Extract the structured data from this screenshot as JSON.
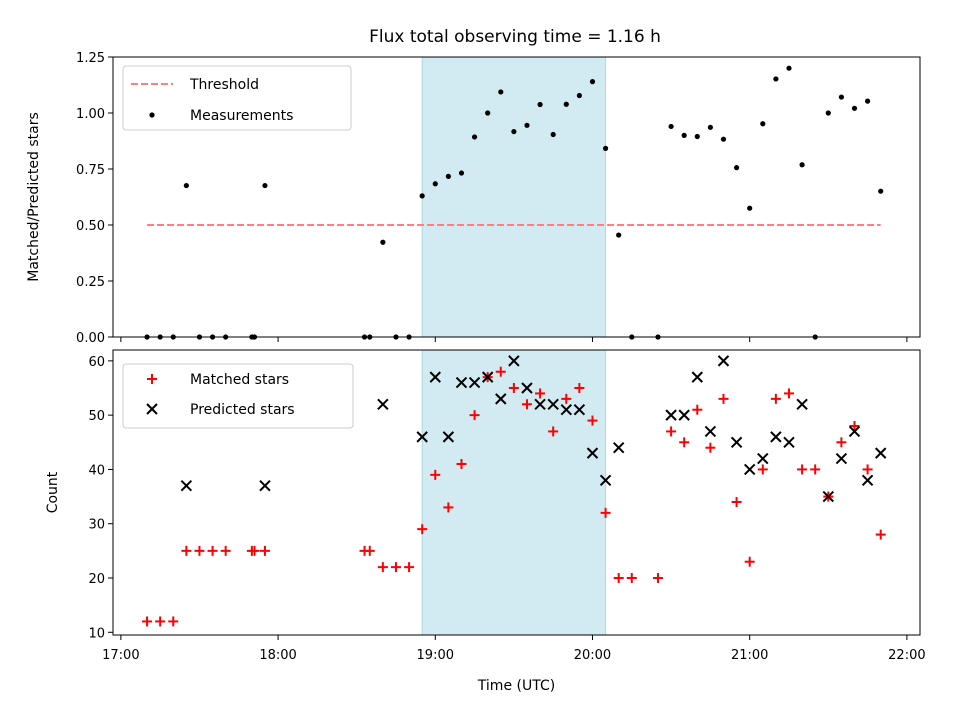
{
  "chart_data": [
    {
      "type": "scatter",
      "title": "Flux total observing time = 1.16 h",
      "xlabel": "",
      "ylabel": "Matched/Predicted stars",
      "xlim": [
        "16:57",
        "22:05"
      ],
      "ylim": [
        0,
        1.25
      ],
      "yticks": [
        0.0,
        0.25,
        0.5,
        0.75,
        1.0,
        1.25
      ],
      "ytick_labels": [
        "0.00",
        "0.25",
        "0.50",
        "0.75",
        "1.00",
        "1.25"
      ],
      "shaded_interval": {
        "x": [
          "18:55",
          "20:05"
        ],
        "color": "#add8e6"
      },
      "legend": {
        "position": "top-left",
        "entries": [
          "Threshold",
          "Measurements"
        ]
      },
      "threshold": {
        "name": "Threshold",
        "y": 0.5,
        "x": [
          "17:10",
          "21:50"
        ],
        "color": "#ff7f7f",
        "style": "dashed"
      },
      "series": [
        {
          "name": "Measurements",
          "color": "#000000",
          "marker": "dot",
          "points": [
            [
              "17:10",
              0.0
            ],
            [
              "17:15",
              0.0
            ],
            [
              "17:20",
              0.0
            ],
            [
              "17:25",
              0.676
            ],
            [
              "17:30",
              0.0
            ],
            [
              "17:35",
              0.0
            ],
            [
              "17:40",
              0.0
            ],
            [
              "17:50",
              0.0
            ],
            [
              "17:51",
              0.0
            ],
            [
              "17:55",
              0.676
            ],
            [
              "18:33",
              0.0
            ],
            [
              "18:35",
              0.0
            ],
            [
              "18:40",
              0.423
            ],
            [
              "18:45",
              0.0
            ],
            [
              "18:50",
              0.0
            ],
            [
              "18:55",
              0.63
            ],
            [
              "19:00",
              0.684
            ],
            [
              "19:05",
              0.717
            ],
            [
              "19:10",
              0.732
            ],
            [
              "19:15",
              0.893
            ],
            [
              "19:20",
              1.0
            ],
            [
              "19:25",
              1.094
            ],
            [
              "19:30",
              0.917
            ],
            [
              "19:35",
              0.945
            ],
            [
              "19:40",
              1.038
            ],
            [
              "19:45",
              0.904
            ],
            [
              "19:50",
              1.039
            ],
            [
              "19:55",
              1.078
            ],
            [
              "20:00",
              1.14
            ],
            [
              "20:05",
              0.842
            ],
            [
              "20:10",
              0.455
            ],
            [
              "20:15",
              0.0
            ],
            [
              "20:25",
              0.0
            ],
            [
              "20:30",
              0.94
            ],
            [
              "20:35",
              0.9
            ],
            [
              "20:40",
              0.895
            ],
            [
              "20:45",
              0.936
            ],
            [
              "20:50",
              0.883
            ],
            [
              "20:55",
              0.756
            ],
            [
              "21:00",
              0.575
            ],
            [
              "21:05",
              0.952
            ],
            [
              "21:10",
              1.152
            ],
            [
              "21:15",
              1.2
            ],
            [
              "21:20",
              0.769
            ],
            [
              "21:25",
              0.0
            ],
            [
              "21:30",
              1.0
            ],
            [
              "21:35",
              1.071
            ],
            [
              "21:40",
              1.021
            ],
            [
              "21:45",
              1.053
            ],
            [
              "21:50",
              0.651
            ]
          ]
        }
      ]
    },
    {
      "type": "scatter",
      "title": "",
      "xlabel": "Time (UTC)",
      "ylabel": "Count",
      "xlim": [
        "16:57",
        "22:05"
      ],
      "xticks": [
        "17:00",
        "18:00",
        "19:00",
        "20:00",
        "21:00",
        "22:00"
      ],
      "ylim": [
        9.5,
        62
      ],
      "yticks": [
        10,
        20,
        30,
        40,
        50,
        60
      ],
      "shaded_interval": {
        "x": [
          "18:55",
          "20:05"
        ],
        "color": "#add8e6"
      },
      "legend": {
        "position": "top-left",
        "entries": [
          "Matched stars",
          "Predicted stars"
        ]
      },
      "series": [
        {
          "name": "Matched stars",
          "color": "#ff0000",
          "marker": "plus",
          "points": [
            [
              "17:10",
              12
            ],
            [
              "17:15",
              12
            ],
            [
              "17:20",
              12
            ],
            [
              "17:25",
              25
            ],
            [
              "17:30",
              25
            ],
            [
              "17:35",
              25
            ],
            [
              "17:40",
              25
            ],
            [
              "17:50",
              25
            ],
            [
              "17:51",
              25
            ],
            [
              "17:55",
              25
            ],
            [
              "18:33",
              25
            ],
            [
              "18:35",
              25
            ],
            [
              "18:40",
              22
            ],
            [
              "18:45",
              22
            ],
            [
              "18:50",
              22
            ],
            [
              "18:55",
              29
            ],
            [
              "19:00",
              39
            ],
            [
              "19:05",
              33
            ],
            [
              "19:10",
              41
            ],
            [
              "19:15",
              50
            ],
            [
              "19:20",
              57
            ],
            [
              "19:25",
              58
            ],
            [
              "19:30",
              55
            ],
            [
              "19:35",
              52
            ],
            [
              "19:40",
              54
            ],
            [
              "19:45",
              47
            ],
            [
              "19:50",
              53
            ],
            [
              "19:55",
              55
            ],
            [
              "20:00",
              49
            ],
            [
              "20:05",
              32
            ],
            [
              "20:10",
              20
            ],
            [
              "20:15",
              20
            ],
            [
              "20:25",
              20
            ],
            [
              "20:30",
              47
            ],
            [
              "20:35",
              45
            ],
            [
              "20:40",
              51
            ],
            [
              "20:45",
              44
            ],
            [
              "20:50",
              53
            ],
            [
              "20:55",
              34
            ],
            [
              "21:00",
              23
            ],
            [
              "21:05",
              40
            ],
            [
              "21:10",
              53
            ],
            [
              "21:15",
              54
            ],
            [
              "21:20",
              40
            ],
            [
              "21:25",
              40
            ],
            [
              "21:30",
              35
            ],
            [
              "21:35",
              45
            ],
            [
              "21:40",
              48
            ],
            [
              "21:45",
              40
            ],
            [
              "21:50",
              28
            ]
          ]
        },
        {
          "name": "Predicted stars",
          "color": "#000000",
          "marker": "x",
          "points": [
            [
              "17:25",
              37
            ],
            [
              "17:55",
              37
            ],
            [
              "18:40",
              52
            ],
            [
              "18:55",
              46
            ],
            [
              "19:00",
              57
            ],
            [
              "19:05",
              46
            ],
            [
              "19:10",
              56
            ],
            [
              "19:15",
              56
            ],
            [
              "19:20",
              57
            ],
            [
              "19:25",
              53
            ],
            [
              "19:30",
              60
            ],
            [
              "19:35",
              55
            ],
            [
              "19:40",
              52
            ],
            [
              "19:45",
              52
            ],
            [
              "19:50",
              51
            ],
            [
              "19:55",
              51
            ],
            [
              "20:00",
              43
            ],
            [
              "20:05",
              38
            ],
            [
              "20:10",
              44
            ],
            [
              "20:30",
              50
            ],
            [
              "20:35",
              50
            ],
            [
              "20:40",
              57
            ],
            [
              "20:45",
              47
            ],
            [
              "20:50",
              60
            ],
            [
              "20:55",
              45
            ],
            [
              "21:00",
              40
            ],
            [
              "21:05",
              42
            ],
            [
              "21:10",
              46
            ],
            [
              "21:15",
              45
            ],
            [
              "21:20",
              52
            ],
            [
              "21:30",
              35
            ],
            [
              "21:35",
              42
            ],
            [
              "21:40",
              47
            ],
            [
              "21:45",
              38
            ],
            [
              "21:50",
              43
            ]
          ]
        }
      ]
    }
  ]
}
